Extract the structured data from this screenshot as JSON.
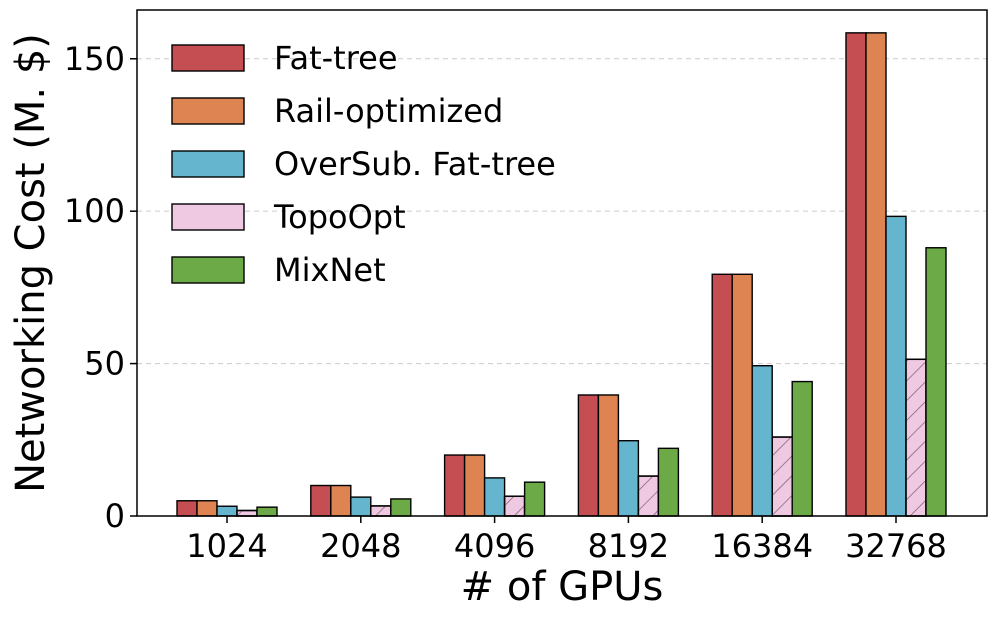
{
  "chart_data": {
    "type": "bar",
    "title": "",
    "xlabel": "# of GPUs",
    "ylabel": "Networking Cost (M. $)",
    "categories": [
      "1024",
      "2048",
      "4096",
      "8192",
      "16384",
      "32768"
    ],
    "ylim": [
      0,
      166
    ],
    "yticks": [
      0,
      50,
      100,
      150
    ],
    "grid": "horizontal dashed",
    "legend_position": "top-left",
    "series": [
      {
        "name": "Fat-tree",
        "color": "#C44E52",
        "hatch": false,
        "values": [
          5,
          10,
          20,
          39.7,
          79.3,
          158.5
        ]
      },
      {
        "name": "Rail-optimized",
        "color": "#DD8452",
        "hatch": false,
        "values": [
          5,
          10,
          20,
          39.7,
          79.3,
          158.5
        ]
      },
      {
        "name": "OverSub. Fat-tree",
        "color": "#64B5CD",
        "hatch": false,
        "values": [
          3.2,
          6.2,
          12.5,
          24.7,
          49.3,
          98.3
        ]
      },
      {
        "name": "TopoOpt",
        "color": "#DA8BC3",
        "hatch": true,
        "values": [
          1.8,
          3.3,
          6.5,
          13.1,
          25.9,
          51.4
        ]
      },
      {
        "name": "MixNet",
        "color": "#6BAA46",
        "hatch": false,
        "values": [
          2.9,
          5.6,
          11.1,
          22.2,
          44.1,
          88.0
        ]
      }
    ]
  }
}
